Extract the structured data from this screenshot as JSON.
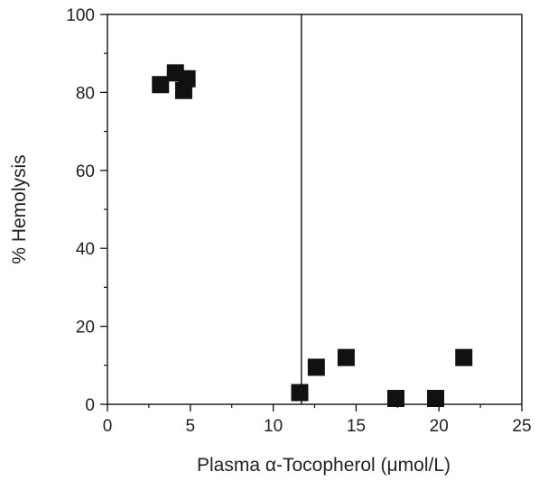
{
  "chart_data": {
    "type": "scatter",
    "title": "",
    "xlabel": "Plasma α-Tocopherol (μmol/L)",
    "ylabel": "% Hemolysis",
    "xlim": [
      0,
      25
    ],
    "ylim": [
      0,
      100
    ],
    "x_ticks": [
      0,
      5,
      10,
      15,
      20,
      25
    ],
    "y_ticks": [
      0,
      20,
      40,
      60,
      80,
      100
    ],
    "x_tick_labels": [
      "0",
      "5",
      "10",
      "15",
      "20",
      "25"
    ],
    "y_tick_labels": [
      "0",
      "20",
      "40",
      "60",
      "80",
      "100"
    ],
    "x_minor_step": 2.5,
    "y_minor_step": 10,
    "grid": false,
    "legend": "none",
    "marker": "square",
    "marker_color": "#111111",
    "reference_line_x": 11.7,
    "points": [
      {
        "x": 3.2,
        "y": 82
      },
      {
        "x": 4.1,
        "y": 85
      },
      {
        "x": 4.8,
        "y": 83.5
      },
      {
        "x": 4.6,
        "y": 80.5
      },
      {
        "x": 11.6,
        "y": 3
      },
      {
        "x": 12.6,
        "y": 9.5
      },
      {
        "x": 14.4,
        "y": 12
      },
      {
        "x": 17.4,
        "y": 1.5
      },
      {
        "x": 19.8,
        "y": 1.5
      },
      {
        "x": 21.5,
        "y": 12
      }
    ]
  }
}
